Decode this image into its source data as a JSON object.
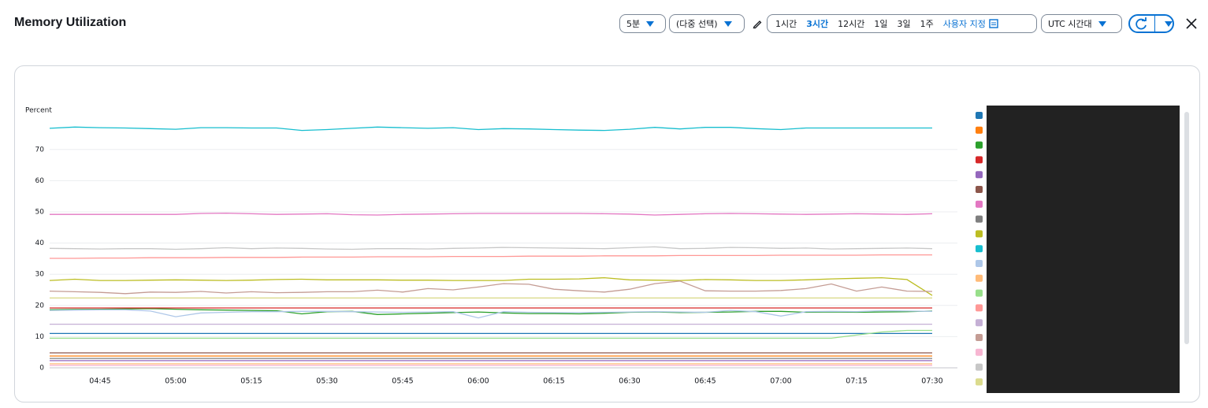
{
  "header": {
    "title": "Memory Utilization"
  },
  "controls": {
    "period": "5분",
    "statistic": "(다중 선택)",
    "ranges": [
      "1시간",
      "3시간",
      "12시간",
      "1일",
      "3일",
      "1주"
    ],
    "selected_range": 1,
    "custom": "사용자 지정",
    "timezone": "UTC 시간대"
  },
  "chart_data": {
    "type": "line",
    "y_label": "Percent",
    "categories": [
      null,
      null,
      "04:45",
      null,
      null,
      "05:00",
      null,
      null,
      "05:15",
      null,
      null,
      "05:30",
      null,
      null,
      "05:45",
      null,
      null,
      "06:00",
      null,
      null,
      "06:15",
      null,
      null,
      "06:30",
      null,
      null,
      "06:45",
      null,
      null,
      "07:00",
      null,
      null,
      "07:15",
      null,
      null,
      "07:30"
    ],
    "ylim": [
      0,
      82
    ],
    "yticks": [
      0,
      10,
      20,
      30,
      40,
      50,
      60,
      70
    ],
    "grid": true,
    "series": [
      {
        "color": "#1f77b4",
        "values": [
          11,
          11,
          11,
          11,
          11,
          11,
          11,
          11,
          11,
          11,
          11,
          11,
          11,
          11,
          11,
          11,
          11,
          11,
          11,
          11,
          11,
          11,
          11,
          11,
          11,
          11,
          11,
          11,
          11,
          11,
          11,
          11,
          11,
          11,
          11,
          11
        ]
      },
      {
        "color": "#ff7f0e",
        "values": [
          3.8,
          3.8,
          3.8,
          3.8,
          3.8,
          3.8,
          3.8,
          3.8,
          3.8,
          3.8,
          3.8,
          3.8,
          3.8,
          3.8,
          3.8,
          3.8,
          3.8,
          3.8,
          3.8,
          3.8,
          3.8,
          3.8,
          3.8,
          3.8,
          3.8,
          3.8,
          3.8,
          3.8,
          3.8,
          3.8,
          3.8,
          3.8,
          3.8,
          3.8,
          3.8,
          3.8
        ]
      },
      {
        "color": "#2ca02c",
        "values": [
          18.6,
          18.7,
          18.8,
          18.9,
          19.0,
          18.8,
          18.6,
          18.5,
          18.4,
          18.3,
          17.3,
          18.0,
          18.1,
          17.1,
          17.3,
          17.5,
          17.7,
          17.9,
          17.6,
          17.4,
          17.4,
          17.3,
          17.5,
          17.8,
          17.9,
          17.7,
          17.8,
          17.9,
          18.1,
          18.1,
          17.8,
          17.9,
          17.8,
          17.9,
          18.0,
          18.2
        ]
      },
      {
        "color": "#d62728",
        "values": [
          19.2,
          19.2,
          19.2,
          19.2,
          19.2,
          19.2,
          19.2,
          19.2,
          19.2,
          19.2,
          19.2,
          19.2,
          19.2,
          19.2,
          19.2,
          19.2,
          19.2,
          19.2,
          19.2,
          19.2,
          19.2,
          19.2,
          19.2,
          19.2,
          19.2,
          19.2,
          19.2,
          19.2,
          19.2,
          19.2,
          19.2,
          19.2,
          19.2,
          19.2,
          19.2,
          19.2
        ]
      },
      {
        "color": "#9467bd",
        "values": [
          2.3,
          2.3,
          2.3,
          2.3,
          2.3,
          2.3,
          2.3,
          2.3,
          2.3,
          2.3,
          2.3,
          2.3,
          2.3,
          2.3,
          2.3,
          2.3,
          2.3,
          2.3,
          2.3,
          2.3,
          2.3,
          2.3,
          2.3,
          2.3,
          2.3,
          2.3,
          2.3,
          2.3,
          2.3,
          2.3,
          2.3,
          2.3,
          2.3,
          2.3,
          2.3,
          2.3
        ]
      },
      {
        "color": "#8c564b",
        "values": [
          4.8,
          4.8,
          4.8,
          4.8,
          4.8,
          4.8,
          4.8,
          4.8,
          4.8,
          4.8,
          4.8,
          4.8,
          4.8,
          4.8,
          4.8,
          4.8,
          4.8,
          4.8,
          4.8,
          4.8,
          4.8,
          4.8,
          4.8,
          4.8,
          4.8,
          4.8,
          4.8,
          4.8,
          4.8,
          4.8,
          4.8,
          4.8,
          4.8,
          4.8,
          4.8,
          4.8
        ]
      },
      {
        "color": "#e377c2",
        "values": [
          49.2,
          49.2,
          49.2,
          49.2,
          49.2,
          49.2,
          49.5,
          49.6,
          49.4,
          49.2,
          49.3,
          49.4,
          49.1,
          49.0,
          49.2,
          49.3,
          49.4,
          49.5,
          49.5,
          49.5,
          49.5,
          49.5,
          49.4,
          49.3,
          49.0,
          49.2,
          49.4,
          49.5,
          49.4,
          49.3,
          49.2,
          49.3,
          49.4,
          49.3,
          49.2,
          49.4
        ]
      },
      {
        "color": "#7f7f7f",
        "values": [
          3,
          3,
          3,
          3,
          3,
          3,
          3,
          3,
          3,
          3,
          3,
          3,
          3,
          3,
          3,
          3,
          3,
          3,
          3,
          3,
          3,
          3,
          3,
          3,
          3,
          3,
          3,
          3,
          3,
          3,
          3,
          3,
          3,
          3,
          3,
          3
        ]
      },
      {
        "color": "#bcbd22",
        "values": [
          28.0,
          28.4,
          28.0,
          28.0,
          28.1,
          28.2,
          28.1,
          28.0,
          28.1,
          28.3,
          28.4,
          28.2,
          28.2,
          28.2,
          28.1,
          28.1,
          28.0,
          28.0,
          28.0,
          28.4,
          28.4,
          28.5,
          28.9,
          28.2,
          28.1,
          28.0,
          28.3,
          28.2,
          28.0,
          28.0,
          28.2,
          28.5,
          28.7,
          28.9,
          28.3,
          23.2
        ]
      },
      {
        "color": "#17becf",
        "values": [
          76.8,
          77.2,
          77.0,
          76.9,
          76.7,
          76.5,
          77.0,
          77.0,
          76.9,
          76.9,
          76.1,
          76.4,
          76.8,
          77.2,
          77.0,
          76.8,
          77.0,
          76.4,
          76.7,
          76.6,
          76.4,
          76.2,
          76.1,
          76.5,
          77.1,
          76.6,
          77.1,
          77.1,
          76.7,
          76.4,
          76.9,
          76.9,
          76.9,
          76.9,
          76.9,
          76.9
        ]
      },
      {
        "color": "#aec7e8",
        "values": [
          18.4,
          18.5,
          18.6,
          18.6,
          18.2,
          16.4,
          17.6,
          17.8,
          18.0,
          18.0,
          18.1,
          18.1,
          18.0,
          17.9,
          17.8,
          17.9,
          18.0,
          16.0,
          18.0,
          17.8,
          17.7,
          17.7,
          17.8,
          17.9,
          18.0,
          17.9,
          17.8,
          18.4,
          18.0,
          16.6,
          18.0,
          18.1,
          18.0,
          18.3,
          18.2,
          18.1
        ]
      },
      {
        "color": "#ffbb78",
        "values": [
          1.3,
          1.3,
          1.3,
          1.3,
          1.3,
          1.3,
          1.3,
          1.3,
          1.3,
          1.3,
          1.3,
          1.3,
          1.3,
          1.3,
          1.3,
          1.3,
          1.3,
          1.3,
          1.3,
          1.3,
          1.3,
          1.3,
          1.3,
          1.3,
          1.3,
          1.3,
          1.3,
          1.3,
          1.3,
          1.3,
          1.3,
          1.3,
          1.3,
          1.3,
          1.3,
          1.3
        ]
      },
      {
        "color": "#98df8a",
        "values": [
          9.5,
          9.5,
          9.5,
          9.5,
          9.5,
          9.5,
          9.5,
          9.5,
          9.5,
          9.5,
          9.5,
          9.5,
          9.5,
          9.5,
          9.5,
          9.5,
          9.5,
          9.5,
          9.5,
          9.5,
          9.5,
          9.5,
          9.5,
          9.5,
          9.5,
          9.5,
          9.5,
          9.5,
          9.5,
          9.5,
          9.5,
          9.5,
          10.5,
          11.5,
          12,
          12
        ]
      },
      {
        "color": "#ff9896",
        "values": [
          35.1,
          35.1,
          35.2,
          35.2,
          35.3,
          35.3,
          35.3,
          35.4,
          35.4,
          35.4,
          35.5,
          35.5,
          35.5,
          35.6,
          35.6,
          35.6,
          35.7,
          35.7,
          35.7,
          35.8,
          35.8,
          35.8,
          35.9,
          35.9,
          35.9,
          36.0,
          36.0,
          36.0,
          36.0,
          36.1,
          36.1,
          36.1,
          36.1,
          36.2,
          36.2,
          36.2
        ]
      },
      {
        "color": "#c5b0d5",
        "values": [
          14,
          14,
          14,
          14,
          14,
          14,
          14,
          14,
          14,
          14,
          14,
          14,
          14,
          14,
          14,
          14,
          14,
          14,
          14,
          14,
          14,
          14,
          14,
          14,
          14,
          14,
          14,
          14,
          14,
          14,
          14,
          14,
          14,
          14,
          14,
          14
        ]
      },
      {
        "color": "#c49c94",
        "values": [
          24.6,
          24.4,
          24.2,
          23.8,
          24.3,
          24.2,
          24.5,
          24.0,
          24.4,
          24.1,
          24.2,
          24.4,
          24.4,
          24.9,
          24.3,
          25.4,
          25.0,
          25.9,
          27.0,
          26.8,
          25.2,
          24.7,
          24.3,
          25.2,
          27.0,
          27.8,
          24.7,
          24.6,
          24.6,
          24.8,
          25.4,
          26.9,
          24.6,
          25.9,
          24.6,
          24.5
        ]
      },
      {
        "color": "#f7b6d2",
        "values": [
          0.8,
          0.8,
          0.8,
          0.8,
          0.8,
          0.8,
          0.8,
          0.8,
          0.8,
          0.8,
          0.8,
          0.8,
          0.8,
          0.8,
          0.8,
          0.8,
          0.8,
          0.8,
          0.8,
          0.8,
          0.8,
          0.8,
          0.8,
          0.8,
          0.8,
          0.8,
          0.8,
          0.8,
          0.8,
          0.8,
          0.8,
          0.8,
          0.8,
          0.8,
          0.8,
          0.8
        ]
      },
      {
        "color": "#c7c7c7",
        "values": [
          38.3,
          38.2,
          38.1,
          38.2,
          38.2,
          38.0,
          38.2,
          38.5,
          38.2,
          38.4,
          38.3,
          38.1,
          38.0,
          38.2,
          38.2,
          38.1,
          38.3,
          38.4,
          38.6,
          38.5,
          38.4,
          38.3,
          38.2,
          38.5,
          38.8,
          38.2,
          38.3,
          38.6,
          38.5,
          38.3,
          38.4,
          38.1,
          38.2,
          38.3,
          38.4,
          38.2
        ]
      },
      {
        "color": "#dbdb8d",
        "values": [
          22.4,
          22.4,
          22.4,
          22.4,
          22.4,
          22.4,
          22.4,
          22.4,
          22.4,
          22.4,
          22.4,
          22.4,
          22.4,
          22.4,
          22.4,
          22.4,
          22.4,
          22.4,
          22.4,
          22.4,
          22.4,
          22.4,
          22.4,
          22.4,
          22.4,
          22.4,
          22.4,
          22.4,
          22.4,
          22.4,
          22.4,
          22.4,
          22.4,
          22.4,
          22.4,
          22.4
        ]
      }
    ]
  }
}
